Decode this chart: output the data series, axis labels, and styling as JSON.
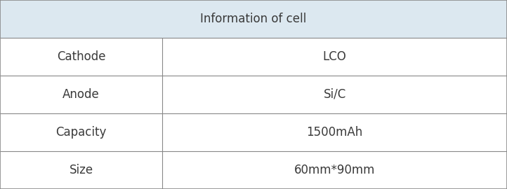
{
  "title": "Information of cell",
  "rows": [
    [
      "Cathode",
      "LCO"
    ],
    [
      "Anode",
      "Si/C"
    ],
    [
      "Capacity",
      "1500mAh"
    ],
    [
      "Size",
      "60mm*90mm"
    ]
  ],
  "header_bg": "#dce8f0",
  "cell_bg": "#ffffff",
  "border_color": "#888888",
  "text_color": "#3a3a3a",
  "title_fontsize": 12,
  "cell_fontsize": 12,
  "col_split": 0.32,
  "outer_border_lw": 1.2,
  "inner_border_lw": 0.8
}
